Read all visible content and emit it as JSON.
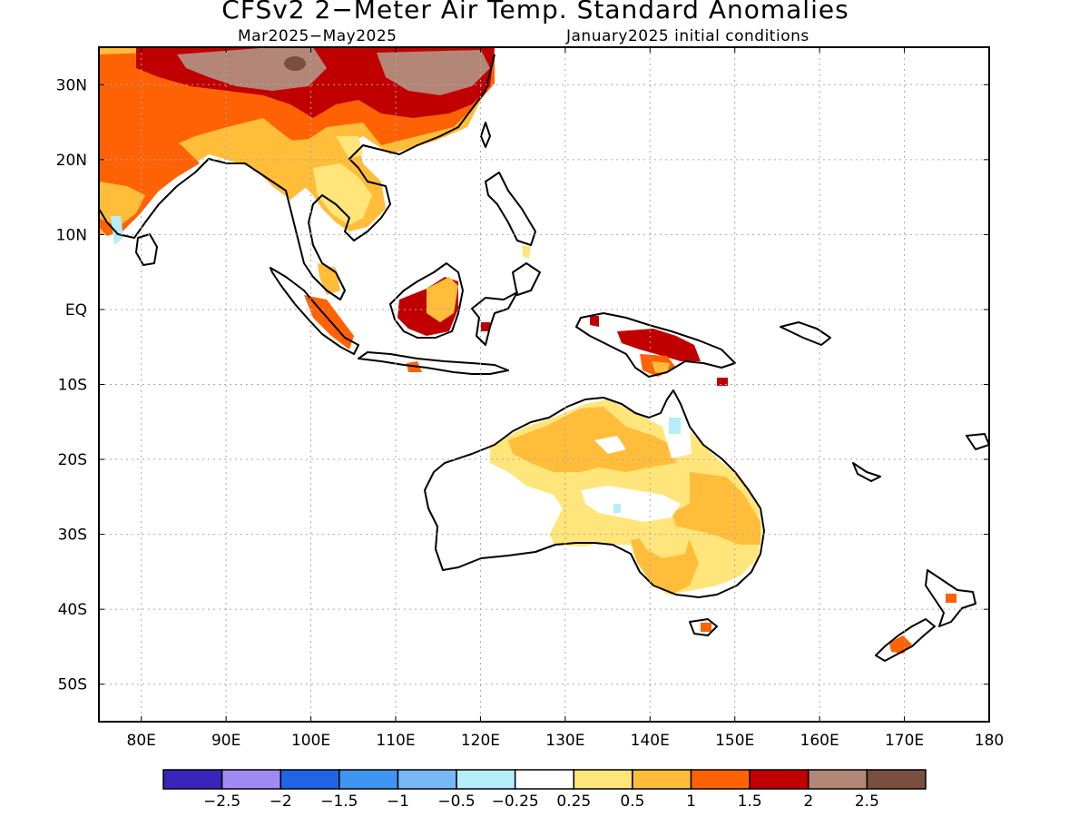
{
  "title": "CFSv2 2−Meter Air Temp. Standard Anomalies",
  "period": "Mar2025−May2025",
  "initial_conditions": "January2025 initial conditions",
  "lat_labels": [
    "30N",
    "20N",
    "10N",
    "EQ",
    "10S",
    "20S",
    "30S",
    "40S",
    "50S"
  ],
  "lon_labels": [
    "80E",
    "90E",
    "100E",
    "110E",
    "120E",
    "130E",
    "140E",
    "150E",
    "160E",
    "170E",
    "180"
  ],
  "colorbar": {
    "colors": [
      "#3a25b8",
      "#9f8af5",
      "#1f64e6",
      "#3f95f2",
      "#78b8f7",
      "#b4eef8",
      "#ffffff",
      "#ffe57a",
      "#ffbd3a",
      "#ff6205",
      "#c00000",
      "#b48678",
      "#7a4f40"
    ],
    "labels": [
      "−2.5",
      "−2",
      "−1.5",
      "−1",
      "−0.5",
      "−0.25",
      "0.25",
      "0.5",
      "1",
      "1.5",
      "2",
      "2.5"
    ]
  }
}
